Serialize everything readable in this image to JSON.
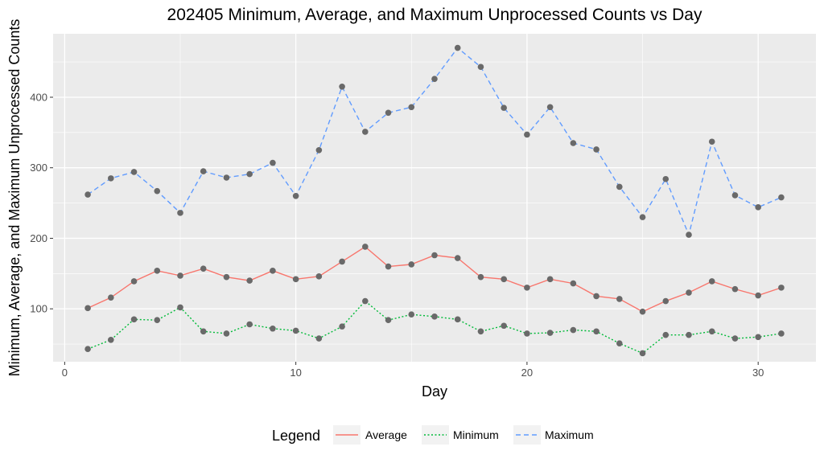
{
  "chart_data": {
    "type": "line",
    "title": "202405 Minimum, Average, and Maximum Unprocessed Counts vs Day",
    "xlabel": "Day",
    "ylabel": "Minimum, Average, and Maximum Unprocessed Counts",
    "xlim": [
      -0.5,
      32.5
    ],
    "ylim": [
      25,
      490
    ],
    "x_ticks": [
      0,
      10,
      20,
      30
    ],
    "x_tick_labels": [
      "0",
      "10",
      "20",
      "30"
    ],
    "y_ticks": [
      100,
      200,
      300,
      400
    ],
    "y_tick_labels": [
      "100",
      "200",
      "300",
      "400"
    ],
    "grid": true,
    "legend_position": "bottom",
    "legend_title": "Legend",
    "x": [
      1,
      2,
      3,
      4,
      5,
      6,
      7,
      8,
      9,
      10,
      11,
      12,
      13,
      14,
      15,
      16,
      17,
      18,
      19,
      20,
      21,
      22,
      23,
      24,
      25,
      26,
      27,
      28,
      29,
      30,
      31
    ],
    "series": [
      {
        "name": "Average",
        "color": "#F8766D",
        "dash": "solid",
        "values": [
          101,
          116,
          139,
          154,
          147,
          157,
          145,
          140,
          154,
          142,
          146,
          167,
          188,
          160,
          163,
          176,
          172,
          145,
          142,
          130,
          142,
          136,
          118,
          114,
          96,
          111,
          123,
          139,
          128,
          119,
          130
        ]
      },
      {
        "name": "Minimum",
        "color": "#00BA38",
        "dash": "dotted",
        "values": [
          43,
          56,
          85,
          84,
          102,
          68,
          65,
          78,
          72,
          69,
          58,
          75,
          111,
          84,
          92,
          89,
          85,
          68,
          76,
          65,
          66,
          70,
          68,
          51,
          37,
          63,
          63,
          68,
          58,
          60,
          65
        ]
      },
      {
        "name": "Maximum",
        "color": "#619CFF",
        "dash": "dashed",
        "values": [
          262,
          285,
          294,
          267,
          236,
          295,
          286,
          291,
          307,
          260,
          325,
          415,
          351,
          378,
          386,
          426,
          470,
          443,
          385,
          347,
          386,
          335,
          326,
          273,
          230,
          284,
          205,
          337,
          261,
          244,
          258
        ]
      }
    ],
    "point_color": "#696969",
    "panel_background": "#EBEBEB"
  }
}
